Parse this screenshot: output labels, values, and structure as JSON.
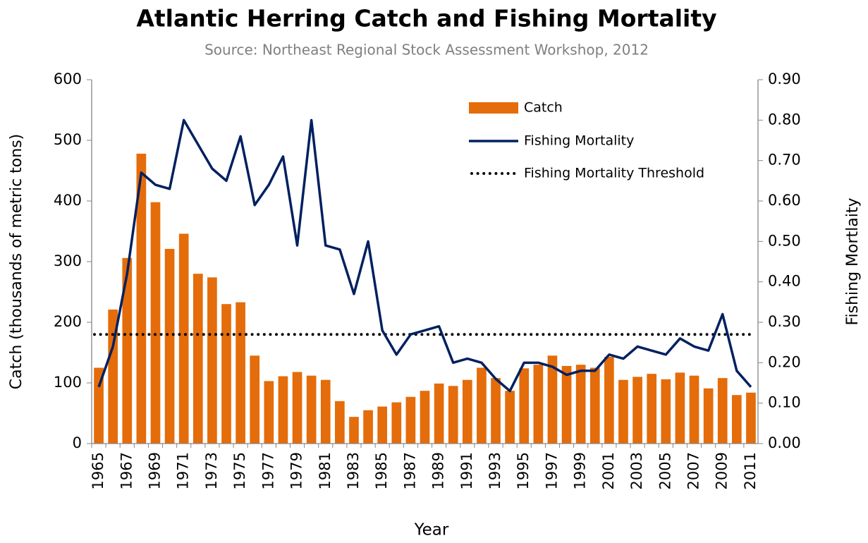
{
  "chart_data": {
    "type": "bar",
    "title": "Atlantic Herring Catch and Fishing Mortality",
    "subtitle": "Source: Northeast Regional Stock Assessment Workshop, 2012",
    "x_label": "Year",
    "y_label": "Catch (thousands of metric tons)",
    "y2_label": "Fishing Mortlaity",
    "categories": [
      "1965",
      null,
      "1967",
      null,
      "1969",
      null,
      "1971",
      null,
      "1973",
      null,
      "1975",
      null,
      "1977",
      null,
      "1979",
      null,
      "1981",
      null,
      "1983",
      null,
      "1985",
      null,
      "1987",
      null,
      "1989",
      null,
      "1991",
      null,
      "1993",
      null,
      "1995",
      null,
      "1997",
      null,
      "1999",
      null,
      "2001",
      null,
      "2003",
      null,
      "2005",
      null,
      "2007",
      null,
      "2009",
      null,
      "2011"
    ],
    "series": [
      {
        "name": "Catch",
        "type": "bar",
        "color": "#e46c0a",
        "values": [
          125,
          221,
          306,
          478,
          398,
          321,
          346,
          280,
          274,
          230,
          233,
          145,
          103,
          111,
          118,
          112,
          105,
          70,
          44,
          55,
          61,
          68,
          77,
          87,
          99,
          95,
          105,
          125,
          108,
          87,
          124,
          130,
          145,
          128,
          130,
          125,
          143,
          105,
          110,
          115,
          106,
          117,
          112,
          91,
          108,
          80,
          84
        ]
      },
      {
        "name": "Fishing Mortality",
        "type": "line",
        "axis": "y2",
        "color": "#002060",
        "values": [
          0.14,
          0.24,
          0.42,
          0.67,
          0.64,
          0.63,
          0.8,
          0.74,
          0.68,
          0.65,
          0.76,
          0.59,
          0.64,
          0.71,
          0.49,
          0.8,
          0.49,
          0.48,
          0.37,
          0.5,
          0.28,
          0.22,
          0.27,
          0.28,
          0.29,
          0.2,
          0.21,
          0.2,
          0.16,
          0.13,
          0.2,
          0.2,
          0.19,
          0.17,
          0.18,
          0.18,
          0.22,
          0.21,
          0.24,
          0.23,
          0.22,
          0.26,
          0.24,
          0.23,
          0.32,
          0.18,
          0.14
        ]
      }
    ],
    "threshold": {
      "name": "Fishing Mortality Threshold",
      "value": 0.27,
      "axis": "y2",
      "color": "#000000",
      "style": "dotted"
    },
    "ylim": [
      0,
      600
    ],
    "yticks": [
      0,
      100,
      200,
      300,
      400,
      500,
      600
    ],
    "y2lim": [
      0,
      0.9
    ],
    "y2ticks": [
      {
        "value": 0,
        "label": "0.00"
      },
      {
        "value": 0.1,
        "label": "0.10"
      },
      {
        "value": 0.2,
        "label": "0.20"
      },
      {
        "value": 0.3,
        "label": "0.30"
      },
      {
        "value": 0.4,
        "label": "0.40"
      },
      {
        "value": 0.5,
        "label": "0.50"
      },
      {
        "value": 0.6,
        "label": "0.60"
      },
      {
        "value": 0.7,
        "label": "0.70"
      },
      {
        "value": 0.8,
        "label": "0.80"
      },
      {
        "value": 0.9,
        "label": "0.90"
      }
    ],
    "grid": false,
    "legend": "top-right"
  }
}
